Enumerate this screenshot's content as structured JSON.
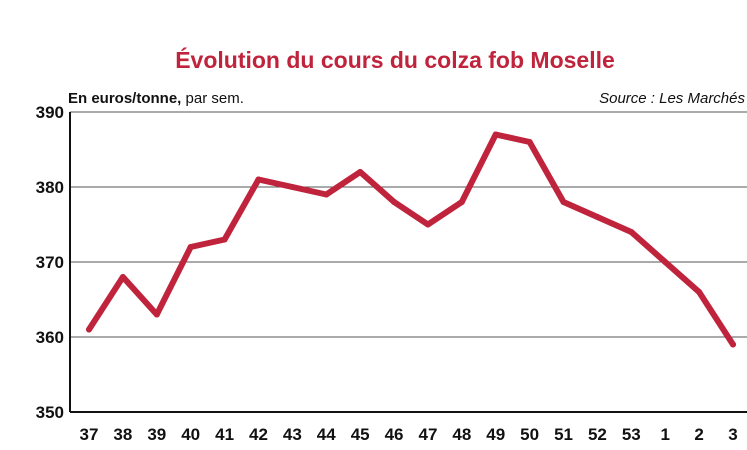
{
  "chart_data": {
    "type": "line",
    "title": "Évolution du cours du colza fob Moselle",
    "unit_label_bold": "En euros/tonne,",
    "unit_label_rest": " par sem.",
    "source": "Source : Les Marchés",
    "ylim": [
      350,
      390
    ],
    "y_ticks": [
      350,
      360,
      370,
      380,
      390
    ],
    "grid": true,
    "line_color": "#c0243c",
    "categories": [
      "37",
      "38",
      "39",
      "40",
      "41",
      "42",
      "43",
      "44",
      "45",
      "46",
      "47",
      "48",
      "49",
      "50",
      "51",
      "52",
      "53",
      "1",
      "2",
      "3"
    ],
    "series": [
      {
        "values": [
          361,
          368,
          363,
          372,
          373,
          381,
          380,
          379,
          382,
          378,
          375,
          378,
          387,
          386,
          378,
          376,
          374,
          370,
          366,
          359
        ]
      }
    ]
  }
}
